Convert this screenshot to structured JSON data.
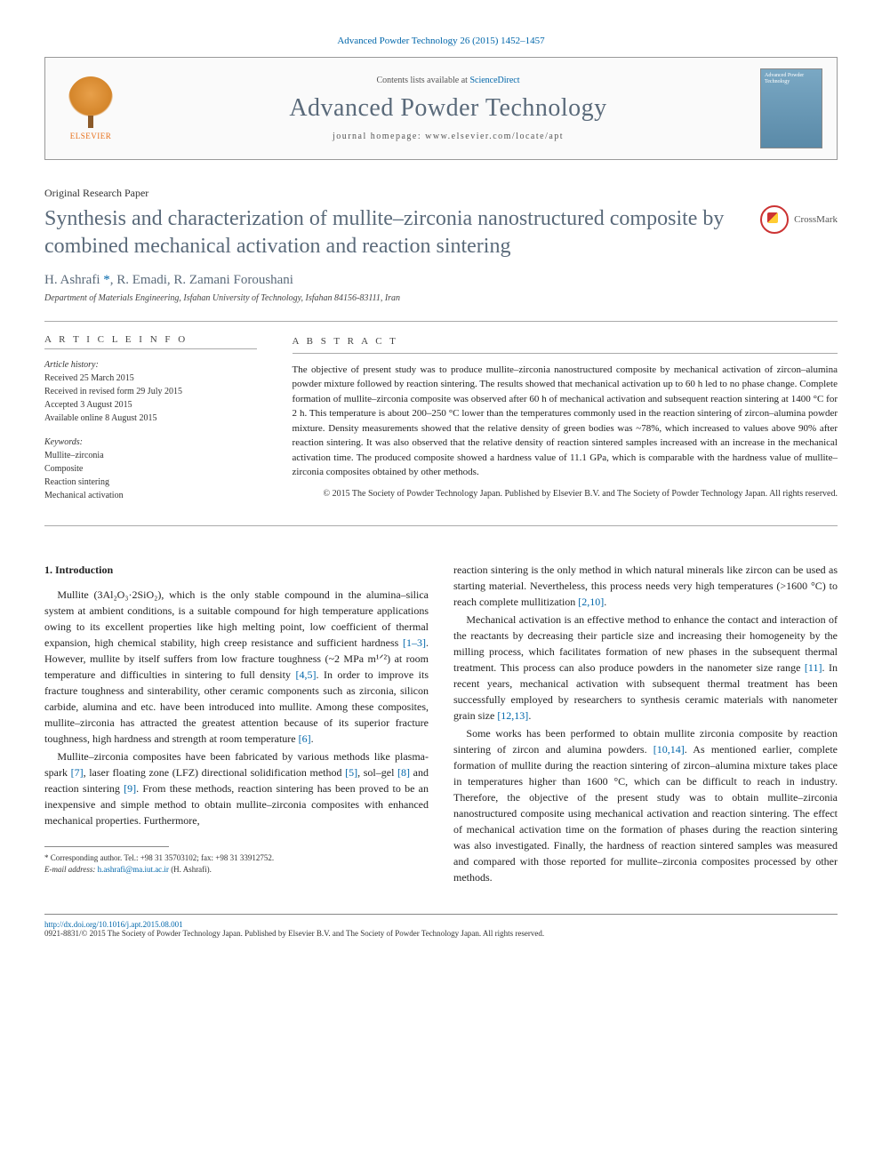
{
  "header": {
    "citation": "Advanced Powder Technology 26 (2015) 1452–1457",
    "contents_prefix": "Contents lists available at ",
    "contents_link": "ScienceDirect",
    "journal_title": "Advanced Powder Technology",
    "homepage_prefix": "journal homepage: ",
    "homepage_url": "www.elsevier.com/locate/apt",
    "publisher": "ELSEVIER",
    "cover_text": "Advanced Powder Technology"
  },
  "article": {
    "type": "Original Research Paper",
    "title": "Synthesis and characterization of mullite–zirconia nanostructured composite by combined mechanical activation and reaction sintering",
    "crossmark": "CrossMark",
    "authors": "H. Ashrafi *, R. Emadi, R. Zamani Foroushani",
    "corr_mark": "*",
    "affiliation": "Department of Materials Engineering, Isfahan University of Technology, Isfahan 84156-83111, Iran"
  },
  "info": {
    "heading": "A R T I C L E   I N F O",
    "history_label": "Article history:",
    "received": "Received 25 March 2015",
    "revised": "Received in revised form 29 July 2015",
    "accepted": "Accepted 3 August 2015",
    "online": "Available online 8 August 2015",
    "keywords_label": "Keywords:",
    "keywords": [
      "Mullite–zirconia",
      "Composite",
      "Reaction sintering",
      "Mechanical activation"
    ]
  },
  "abstract": {
    "heading": "A B S T R A C T",
    "text": "The objective of present study was to produce mullite–zirconia nanostructured composite by mechanical activation of zircon–alumina powder mixture followed by reaction sintering. The results showed that mechanical activation up to 60 h led to no phase change. Complete formation of mullite–zirconia composite was observed after 60 h of mechanical activation and subsequent reaction sintering at 1400 °C for 2 h. This temperature is about 200–250 °C lower than the temperatures commonly used in the reaction sintering of zircon–alumina powder mixture. Density measurements showed that the relative density of green bodies was ~78%, which increased to values above 90% after reaction sintering. It was also observed that the relative density of reaction sintered samples increased with an increase in the mechanical activation time. The produced composite showed a hardness value of 11.1 GPa, which is comparable with the hardness value of mullite–zirconia composites obtained by other methods.",
    "copyright": "© 2015 The Society of Powder Technology Japan. Published by Elsevier B.V. and The Society of Powder Technology Japan. All rights reserved."
  },
  "body": {
    "section_number": "1.",
    "section_title": "Introduction",
    "col1_p1_a": "Mullite (3Al₂O₃·2SiO₂), which is the only stable compound in the alumina–silica system at ambient conditions, is a suitable compound for high temperature applications owing to its excellent properties like high melting point, low coefficient of thermal expansion, high chemical stability, high creep resistance and sufficient hardness ",
    "col1_p1_ref1": "[1–3]",
    "col1_p1_b": ". However, mullite by itself suffers from low fracture toughness (~2 MPa m¹ᐟ²) at room temperature and difficulties in sintering to full density ",
    "col1_p1_ref2": "[4,5]",
    "col1_p1_c": ". In order to improve its fracture toughness and sinterability, other ceramic components such as zirconia, silicon carbide, alumina and etc. have been introduced into mullite. Among these composites, mullite–zirconia has attracted the greatest attention because of its superior fracture toughness, high hardness and strength at room temperature ",
    "col1_p1_ref3": "[6]",
    "col1_p1_d": ".",
    "col1_p2_a": "Mullite–zirconia composites have been fabricated by various methods like plasma-spark ",
    "col1_p2_ref1": "[7]",
    "col1_p2_b": ", laser floating zone (LFZ) directional solidification method ",
    "col1_p2_ref2": "[5]",
    "col1_p2_c": ", sol–gel ",
    "col1_p2_ref3": "[8]",
    "col1_p2_d": " and reaction sintering ",
    "col1_p2_ref4": "[9]",
    "col1_p2_e": ". From these methods, reaction sintering has been proved to be an inexpensive and simple method to obtain mullite–zirconia composites with enhanced mechanical properties. Furthermore,",
    "col2_p1_a": "reaction sintering is the only method in which natural minerals like zircon can be used as starting material. Nevertheless, this process needs very high temperatures (>1600 °C) to reach complete mullitization ",
    "col2_p1_ref1": "[2,10]",
    "col2_p1_b": ".",
    "col2_p2_a": "Mechanical activation is an effective method to enhance the contact and interaction of the reactants by decreasing their particle size and increasing their homogeneity by the milling process, which facilitates formation of new phases in the subsequent thermal treatment. This process can also produce powders in the nanometer size range ",
    "col2_p2_ref1": "[11]",
    "col2_p2_b": ". In recent years, mechanical activation with subsequent thermal treatment has been successfully employed by researchers to synthesis ceramic materials with nanometer grain size ",
    "col2_p2_ref2": "[12,13]",
    "col2_p2_c": ".",
    "col2_p3_a": "Some works has been performed to obtain mullite zirconia composite by reaction sintering of zircon and alumina powders. ",
    "col2_p3_ref1": "[10,14]",
    "col2_p3_b": ". As mentioned earlier, complete formation of mullite during the reaction sintering of zircon–alumina mixture takes place in temperatures higher than 1600 °C, which can be difficult to reach in industry. Therefore, the objective of the present study was to obtain mullite–zirconia nanostructured composite using mechanical activation and reaction sintering. The effect of mechanical activation time on the formation of phases during the reaction sintering was also investigated. Finally, the hardness of reaction sintered samples was measured and compared with those reported for mullite–zirconia composites processed by other methods."
  },
  "footnote": {
    "corr_label": "* Corresponding author. Tel.: +98 31 35703102; fax: +98 31 33912752.",
    "email_label": "E-mail address: ",
    "email": "h.ashrafi@ma.iut.ac.ir",
    "email_suffix": " (H. Ashrafi)."
  },
  "footer": {
    "doi": "http://dx.doi.org/10.1016/j.apt.2015.08.001",
    "issn_line": "0921-8831/© 2015 The Society of Powder Technology Japan. Published by Elsevier B.V. and The Society of Powder Technology Japan. All rights reserved."
  },
  "colors": {
    "link": "#0066aa",
    "heading": "#5a6a7a",
    "border": "#aaaaaa",
    "text": "#222222"
  }
}
